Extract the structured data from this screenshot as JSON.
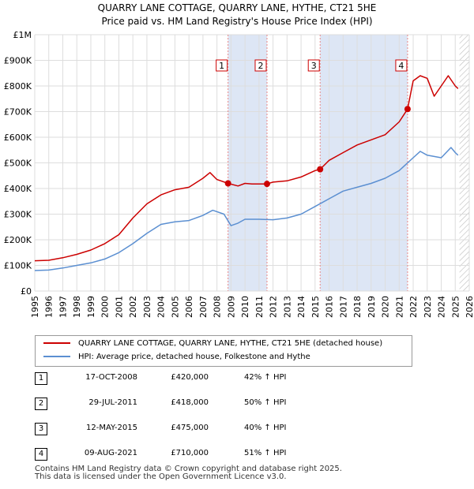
{
  "chart_data": {
    "type": "line",
    "title": "QUARRY LANE COTTAGE, QUARRY LANE, HYTHE, CT21 5HE",
    "subtitle": "Price paid vs. HM Land Registry's House Price Index (HPI)",
    "xlabel": "",
    "ylabel": "",
    "xlim": [
      1995,
      2026
    ],
    "ylim": [
      0,
      1000000
    ],
    "x_ticks": [
      "1995",
      "1996",
      "1997",
      "1998",
      "1999",
      "2000",
      "2001",
      "2002",
      "2003",
      "2004",
      "2005",
      "2006",
      "2007",
      "2008",
      "2009",
      "2010",
      "2011",
      "2012",
      "2013",
      "2014",
      "2015",
      "2016",
      "2017",
      "2018",
      "2019",
      "2020",
      "2021",
      "2022",
      "2023",
      "2024",
      "2025",
      "2026"
    ],
    "y_ticks": [
      {
        "value": 0,
        "label": "£0"
      },
      {
        "value": 100000,
        "label": "£100K"
      },
      {
        "value": 200000,
        "label": "£200K"
      },
      {
        "value": 300000,
        "label": "£300K"
      },
      {
        "value": 400000,
        "label": "£400K"
      },
      {
        "value": 500000,
        "label": "£500K"
      },
      {
        "value": 600000,
        "label": "£600K"
      },
      {
        "value": 700000,
        "label": "£700K"
      },
      {
        "value": 800000,
        "label": "£800K"
      },
      {
        "value": 900000,
        "label": "£900K"
      },
      {
        "value": 1000000,
        "label": "£1M"
      }
    ],
    "grid": true,
    "series": [
      {
        "name": "QUARRY LANE COTTAGE, QUARRY LANE, HYTHE, CT21 5HE (detached house)",
        "color": "#cc0000",
        "points": [
          [
            1995,
            118000
          ],
          [
            1996,
            120000
          ],
          [
            1997,
            130000
          ],
          [
            1998,
            143000
          ],
          [
            1999,
            160000
          ],
          [
            2000,
            185000
          ],
          [
            2001,
            220000
          ],
          [
            2002,
            285000
          ],
          [
            2003,
            340000
          ],
          [
            2004,
            375000
          ],
          [
            2005,
            395000
          ],
          [
            2006,
            405000
          ],
          [
            2007,
            440000
          ],
          [
            2007.5,
            462000
          ],
          [
            2008,
            435000
          ],
          [
            2008.79,
            420000
          ],
          [
            2009.5,
            410000
          ],
          [
            2010,
            420000
          ],
          [
            2010.5,
            418000
          ],
          [
            2011,
            418000
          ],
          [
            2011.57,
            418000
          ],
          [
            2012,
            425000
          ],
          [
            2013,
            430000
          ],
          [
            2014,
            445000
          ],
          [
            2015,
            470000
          ],
          [
            2015.36,
            475000
          ],
          [
            2016,
            510000
          ],
          [
            2017,
            540000
          ],
          [
            2018,
            570000
          ],
          [
            2019,
            590000
          ],
          [
            2020,
            610000
          ],
          [
            2021,
            660000
          ],
          [
            2021.6,
            710000
          ],
          [
            2022,
            820000
          ],
          [
            2022.5,
            840000
          ],
          [
            2023,
            830000
          ],
          [
            2023.5,
            760000
          ],
          [
            2024,
            800000
          ],
          [
            2024.5,
            840000
          ],
          [
            2025,
            800000
          ],
          [
            2025.2,
            790000
          ]
        ]
      },
      {
        "name": "HPI: Average price, detached house, Folkestone and Hythe",
        "color": "#5b8fd1",
        "points": [
          [
            1995,
            80000
          ],
          [
            1996,
            82000
          ],
          [
            1997,
            90000
          ],
          [
            1998,
            100000
          ],
          [
            1999,
            110000
          ],
          [
            2000,
            125000
          ],
          [
            2001,
            150000
          ],
          [
            2002,
            185000
          ],
          [
            2003,
            225000
          ],
          [
            2004,
            260000
          ],
          [
            2005,
            270000
          ],
          [
            2006,
            275000
          ],
          [
            2007,
            295000
          ],
          [
            2007.7,
            315000
          ],
          [
            2008.5,
            300000
          ],
          [
            2009,
            255000
          ],
          [
            2009.5,
            265000
          ],
          [
            2010,
            280000
          ],
          [
            2011,
            280000
          ],
          [
            2012,
            278000
          ],
          [
            2013,
            285000
          ],
          [
            2014,
            300000
          ],
          [
            2015,
            330000
          ],
          [
            2016,
            360000
          ],
          [
            2017,
            390000
          ],
          [
            2018,
            405000
          ],
          [
            2019,
            420000
          ],
          [
            2020,
            440000
          ],
          [
            2021,
            470000
          ],
          [
            2022,
            520000
          ],
          [
            2022.5,
            545000
          ],
          [
            2023,
            530000
          ],
          [
            2024,
            520000
          ],
          [
            2024.7,
            560000
          ],
          [
            2025,
            540000
          ],
          [
            2025.2,
            530000
          ]
        ]
      }
    ],
    "sales": [
      {
        "num": "1",
        "x": 2008.79,
        "price": 420000,
        "date": "17-OCT-2008",
        "price_label": "£420,000",
        "hpi_label": "42% ↑ HPI"
      },
      {
        "num": "2",
        "x": 2011.57,
        "price": 418000,
        "date": "29-JUL-2011",
        "price_label": "£418,000",
        "hpi_label": "50% ↑ HPI"
      },
      {
        "num": "3",
        "x": 2015.36,
        "price": 475000,
        "date": "12-MAY-2015",
        "price_label": "£475,000",
        "hpi_label": "40% ↑ HPI"
      },
      {
        "num": "4",
        "x": 2021.6,
        "price": 710000,
        "date": "09-AUG-2021",
        "price_label": "£710,000",
        "hpi_label": "51% ↑ HPI"
      }
    ],
    "data_end_x": 2025.3
  },
  "legend": {
    "property_label": "QUARRY LANE COTTAGE, QUARRY LANE, HYTHE, CT21 5HE (detached house)",
    "hpi_label": "HPI: Average price, detached house, Folkestone and Hythe"
  },
  "footer": {
    "line1": "Contains HM Land Registry data © Crown copyright and database right 2025.",
    "line2": "This data is licensed under the Open Government Licence v3.0."
  }
}
